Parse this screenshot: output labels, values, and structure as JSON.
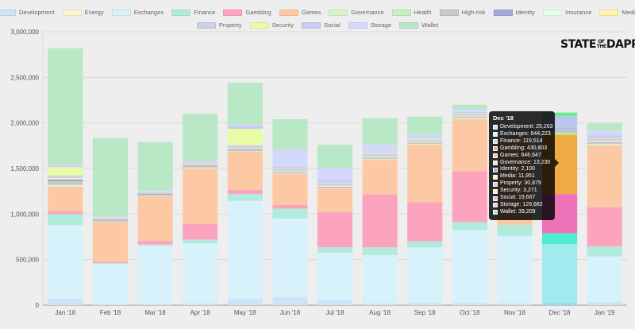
{
  "logo": {
    "left": "STATE",
    "middle": "OF THE",
    "right": "DAPPS"
  },
  "chart_data": {
    "type": "bar",
    "stacked": true,
    "legend_position": "top",
    "grid": true,
    "ylim": [
      0,
      3000000
    ],
    "yticks": [
      "0",
      "500,000",
      "1,000,000",
      "1,500,000",
      "2,000,000",
      "2,500,000",
      "3,000,000"
    ],
    "categories": [
      "Jan '18",
      "Feb '18",
      "Mar '18",
      "Apr '18",
      "May '18",
      "Jun '18",
      "Jul '18",
      "Aug '18",
      "Sep '18",
      "Oct '18",
      "Nov '18",
      "Dec '18",
      "Jan '19"
    ],
    "series": [
      {
        "name": "Development",
        "color": "#cce3f8",
        "values": [
          70000,
          10000,
          15000,
          20000,
          65000,
          90000,
          55000,
          20000,
          25000,
          25000,
          20000,
          25263,
          35000
        ]
      },
      {
        "name": "Energy",
        "color": "#fff3cc",
        "values": [
          0,
          0,
          0,
          0,
          0,
          0,
          0,
          0,
          0,
          0,
          0,
          0,
          0
        ]
      },
      {
        "name": "Exchanges",
        "color": "#d7f2fb",
        "values": [
          810000,
          440000,
          640000,
          660000,
          1080000,
          860000,
          520000,
          530000,
          610000,
          800000,
          740000,
          644223,
          500000
        ]
      },
      {
        "name": "Finance",
        "color": "#b0ebde",
        "values": [
          120000,
          15000,
          10000,
          40000,
          75000,
          110000,
          60000,
          85000,
          65000,
          85000,
          120000,
          119514,
          110000
        ]
      },
      {
        "name": "Gambling",
        "color": "#fca4bd",
        "values": [
          30000,
          15000,
          40000,
          170000,
          45000,
          40000,
          385000,
          580000,
          430000,
          560000,
          0,
          430803,
          430000
        ]
      },
      {
        "name": "Games",
        "color": "#fdc8a4",
        "values": [
          270000,
          430000,
          490000,
          610000,
          420000,
          340000,
          260000,
          380000,
          630000,
          570000,
          960000,
          646647,
          680000
        ]
      },
      {
        "name": "Governance",
        "color": "#d9f1cf",
        "values": [
          20000,
          5000,
          5000,
          10000,
          5000,
          5000,
          5000,
          10000,
          10000,
          15000,
          10000,
          13230,
          15000
        ]
      },
      {
        "name": "Health",
        "color": "#c8eec5",
        "values": [
          0,
          0,
          0,
          0,
          0,
          0,
          0,
          0,
          0,
          0,
          0,
          0,
          0
        ]
      },
      {
        "name": "High-risk",
        "color": "#c8c8c8",
        "values": [
          40000,
          15000,
          10000,
          15000,
          10000,
          10000,
          10000,
          10000,
          10000,
          10000,
          5000,
          0,
          15000
        ]
      },
      {
        "name": "Identity",
        "color": "#a6a6da",
        "values": [
          20000,
          10000,
          15000,
          10000,
          10000,
          5000,
          5000,
          5000,
          5000,
          5000,
          3000,
          2100,
          5000
        ]
      },
      {
        "name": "Insurance",
        "color": "#e6fde9",
        "values": [
          0,
          0,
          0,
          0,
          0,
          0,
          0,
          0,
          0,
          0,
          0,
          0,
          0
        ]
      },
      {
        "name": "Media",
        "color": "#fff3b0",
        "values": [
          15000,
          5000,
          5000,
          10000,
          10000,
          10000,
          10000,
          10000,
          10000,
          10000,
          10000,
          11951,
          10000
        ]
      },
      {
        "name": "Property",
        "color": "#cbd2e7",
        "values": [
          30000,
          15000,
          10000,
          15000,
          35000,
          30000,
          30000,
          30000,
          25000,
          25000,
          30000,
          30879,
          30000
        ]
      },
      {
        "name": "Security",
        "color": "#e8fca6",
        "values": [
          90000,
          5000,
          5000,
          5000,
          180000,
          5000,
          5000,
          10000,
          10000,
          5000,
          5000,
          3271,
          5000
        ]
      },
      {
        "name": "Social",
        "color": "#c8cbf4",
        "values": [
          10000,
          5000,
          5000,
          10000,
          35000,
          15000,
          35000,
          10000,
          10000,
          10000,
          15000,
          19667,
          30000
        ]
      },
      {
        "name": "Storage",
        "color": "#d4d8fb",
        "values": [
          15000,
          5000,
          10000,
          15000,
          10000,
          190000,
          120000,
          80000,
          30000,
          30000,
          20000,
          126682,
          50000
        ]
      },
      {
        "name": "Wallet",
        "color": "#b8e8c5",
        "values": [
          1280000,
          860000,
          530000,
          510000,
          460000,
          330000,
          260000,
          290000,
          200000,
          50000,
          50000,
          39209,
          80000
        ]
      }
    ],
    "highlighted_category": "Dec '18",
    "tooltip": {
      "title": "Dec '18",
      "rows": [
        {
          "label": "Development: 25,263",
          "color": "#cce3f8"
        },
        {
          "label": "Exchanges: 644,223",
          "color": "#d7f2fb"
        },
        {
          "label": "Finance: 119,514",
          "color": "#b0ebde"
        },
        {
          "label": "Gambling: 430,803",
          "color": "#fca4bd"
        },
        {
          "label": "Games: 646,647",
          "color": "#fdc8a4"
        },
        {
          "label": "Governance: 13,230",
          "color": "#d9f1cf"
        },
        {
          "label": "Identity: 2,100",
          "color": "#a6a6da"
        },
        {
          "label": "Media: 11,951",
          "color": "#fff3b0"
        },
        {
          "label": "Property: 30,879",
          "color": "#cbd2e7"
        },
        {
          "label": "Security: 3,271",
          "color": "#e8fca6"
        },
        {
          "label": "Social: 19,667",
          "color": "#c8cbf4"
        },
        {
          "label": "Storage: 126,682",
          "color": "#d4d8fb"
        },
        {
          "label": "Wallet: 39,209",
          "color": "#b8e8c5"
        }
      ]
    }
  }
}
